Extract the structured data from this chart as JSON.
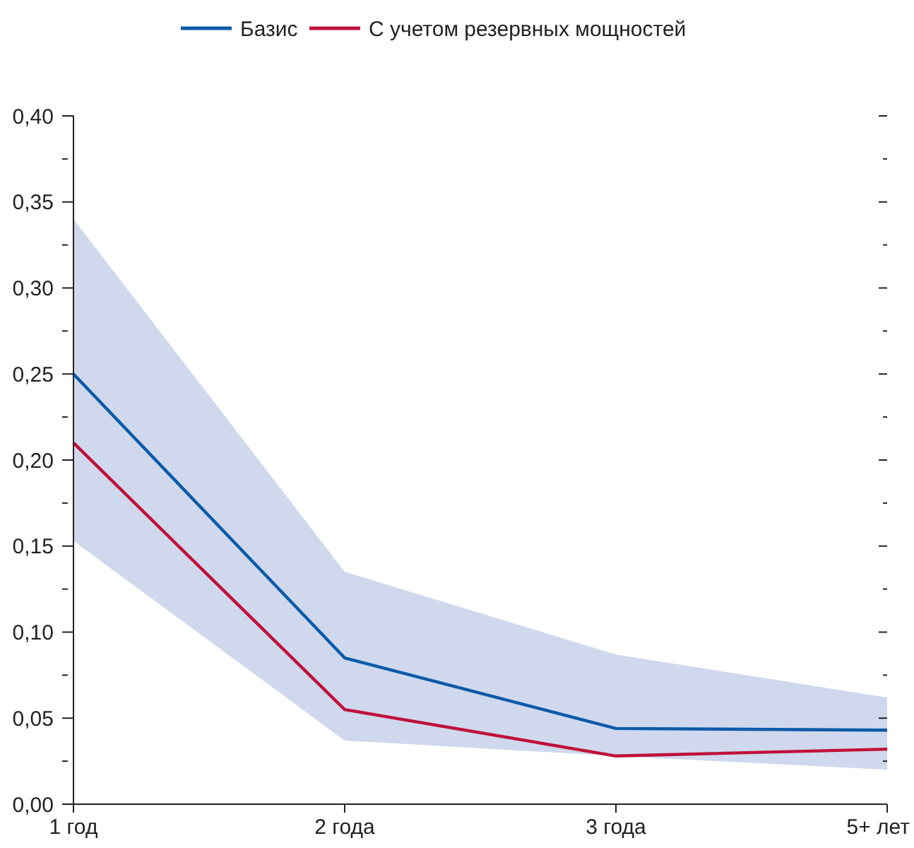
{
  "chart_data": {
    "type": "line",
    "categories": [
      "1 год",
      "2 года",
      "3 года",
      "5+ лет"
    ],
    "series": [
      {
        "name": "Базис",
        "color": "#0a5aa8",
        "values": [
          0.25,
          0.085,
          0.044,
          0.043
        ],
        "lower": [
          0.153,
          0.037,
          0.028,
          0.02
        ],
        "upper": [
          0.34,
          0.135,
          0.087,
          0.062
        ]
      },
      {
        "name": "С учетом резервных мощностей",
        "color": "#c0103a",
        "values": [
          0.21,
          0.055,
          0.028,
          0.032
        ]
      }
    ],
    "ylim": [
      0,
      0.4
    ],
    "yticks": [
      {
        "value": 0,
        "label": "0,00"
      },
      {
        "value": 0.025,
        "label": null
      },
      {
        "value": 0.05,
        "label": "0,05"
      },
      {
        "value": 0.075,
        "label": null
      },
      {
        "value": 0.1,
        "label": "0,10"
      },
      {
        "value": 0.125,
        "label": null
      },
      {
        "value": 0.15,
        "label": "0,15"
      },
      {
        "value": 0.175,
        "label": null
      },
      {
        "value": 0.2,
        "label": "0,20"
      },
      {
        "value": 0.225,
        "label": null
      },
      {
        "value": 0.25,
        "label": "0,25"
      },
      {
        "value": 0.275,
        "label": null
      },
      {
        "value": 0.3,
        "label": "0,30"
      },
      {
        "value": 0.325,
        "label": null
      },
      {
        "value": 0.35,
        "label": "0,35"
      },
      {
        "value": 0.375,
        "label": null
      },
      {
        "value": 0.4,
        "label": "0,40"
      }
    ],
    "grid": false,
    "legend": "top",
    "marker": "none",
    "line_style": "solid"
  }
}
